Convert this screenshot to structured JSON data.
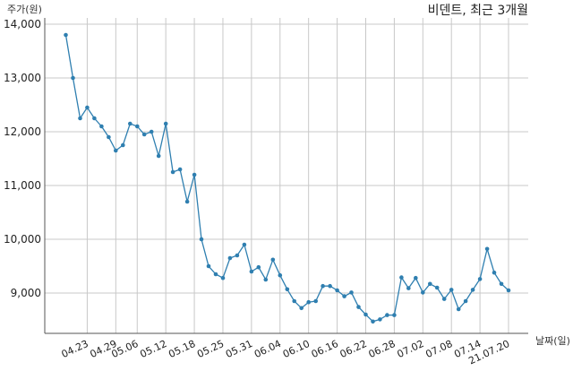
{
  "chart_data": {
    "type": "line",
    "title": "비덴트, 최근 3개월",
    "ylabel": "주가(원)",
    "xlabel": "날짜(일)",
    "ylim": [
      8250,
      14000
    ],
    "yticks": [
      9000,
      10000,
      11000,
      12000,
      13000,
      14000
    ],
    "ytick_labels": [
      "9,000",
      "10,000",
      "11,000",
      "12,000",
      "13,000",
      "14,000"
    ],
    "xtick_labels": [
      "04.23",
      "04.29",
      "05.06",
      "05.12",
      "05.18",
      "05.25",
      "05.31",
      "06.04",
      "06.10",
      "06.16",
      "06.22",
      "06.28",
      "07.02",
      "07.08",
      "07.14",
      "21.07.20"
    ],
    "xtick_positions": [
      3,
      7,
      10,
      14,
      18,
      22,
      26,
      30,
      34,
      38,
      42,
      46,
      50,
      54,
      58,
      62
    ],
    "grid": true,
    "line_color": "#2f7fb0",
    "series": [
      {
        "values": [
          13800,
          13000,
          12250,
          12450,
          12250,
          12100,
          11900,
          11650,
          11750,
          12150,
          12100,
          11950,
          12000,
          11550,
          12150,
          11250,
          11300,
          10700,
          11200,
          10000,
          9500,
          9350,
          9280,
          9650,
          9700,
          9900,
          9400,
          9480,
          9250,
          9620,
          9330,
          9070,
          8850,
          8720,
          8830,
          8850,
          9130,
          9130,
          9050,
          8940,
          9010,
          8740,
          8600,
          8470,
          8510,
          8590,
          8590,
          9290,
          9090,
          9280,
          9010,
          9170,
          9100,
          8890,
          9060,
          8700,
          8850,
          9060,
          9260,
          9820,
          9380,
          9170,
          9050
        ]
      }
    ]
  }
}
